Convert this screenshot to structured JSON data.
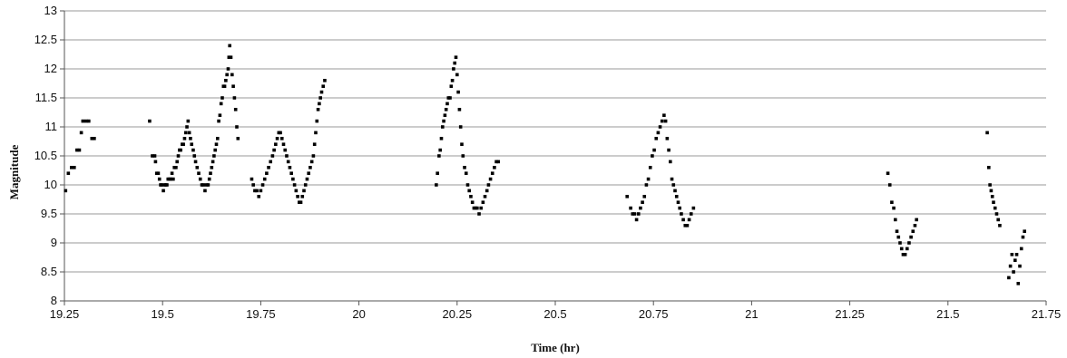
{
  "chart_data": {
    "type": "scatter",
    "title": "",
    "xlabel": "Time (hr)",
    "ylabel": "Magnitude",
    "xlim": [
      19.25,
      21.75
    ],
    "ylim": [
      8,
      13
    ],
    "grid": "horizontal",
    "legend": "none",
    "marker_color": "#000000",
    "x_ticks": [
      "19.25",
      "19.5",
      "19.75",
      "20",
      "20.25",
      "20.5",
      "20.75",
      "21",
      "21.25",
      "21.5",
      "21.75"
    ],
    "y_ticks": [
      "8",
      "8.5",
      "9",
      "9.5",
      "10",
      "10.5",
      "11",
      "11.5",
      "12",
      "12.5",
      "13"
    ],
    "series": [
      {
        "points": [
          [
            19.253,
            9.9
          ],
          [
            19.26,
            10.2
          ],
          [
            19.268,
            10.3
          ],
          [
            19.275,
            10.3
          ],
          [
            19.282,
            10.6
          ],
          [
            19.288,
            10.6
          ],
          [
            19.293,
            10.9
          ],
          [
            19.297,
            11.1
          ],
          [
            19.305,
            11.1
          ],
          [
            19.312,
            11.1
          ],
          [
            19.32,
            10.8
          ],
          [
            19.326,
            10.8
          ],
          [
            19.467,
            11.1
          ],
          [
            19.474,
            10.5
          ],
          [
            19.48,
            10.5
          ],
          [
            19.482,
            10.4
          ],
          [
            19.485,
            10.2
          ],
          [
            19.489,
            10.2
          ],
          [
            19.492,
            10.1
          ],
          [
            19.495,
            10.0
          ],
          [
            19.498,
            10.0
          ],
          [
            19.502,
            9.9
          ],
          [
            19.505,
            10.0
          ],
          [
            19.508,
            10.0
          ],
          [
            19.511,
            10.0
          ],
          [
            19.514,
            10.1
          ],
          [
            19.518,
            10.1
          ],
          [
            19.521,
            10.1
          ],
          [
            19.524,
            10.2
          ],
          [
            19.527,
            10.1
          ],
          [
            19.53,
            10.3
          ],
          [
            19.534,
            10.3
          ],
          [
            19.537,
            10.4
          ],
          [
            19.54,
            10.5
          ],
          [
            19.543,
            10.6
          ],
          [
            19.546,
            10.6
          ],
          [
            19.55,
            10.7
          ],
          [
            19.553,
            10.7
          ],
          [
            19.556,
            10.8
          ],
          [
            19.559,
            10.9
          ],
          [
            19.562,
            11.0
          ],
          [
            19.565,
            11.1
          ],
          [
            19.568,
            10.9
          ],
          [
            19.571,
            10.8
          ],
          [
            19.574,
            10.7
          ],
          [
            19.578,
            10.6
          ],
          [
            19.581,
            10.5
          ],
          [
            19.584,
            10.4
          ],
          [
            19.588,
            10.3
          ],
          [
            19.592,
            10.2
          ],
          [
            19.596,
            10.1
          ],
          [
            19.6,
            10.0
          ],
          [
            19.604,
            10.0
          ],
          [
            19.608,
            9.9
          ],
          [
            19.612,
            10.0
          ],
          [
            19.616,
            10.0
          ],
          [
            19.619,
            10.1
          ],
          [
            19.622,
            10.2
          ],
          [
            19.625,
            10.3
          ],
          [
            19.628,
            10.4
          ],
          [
            19.631,
            10.5
          ],
          [
            19.634,
            10.6
          ],
          [
            19.637,
            10.7
          ],
          [
            19.64,
            10.8
          ],
          [
            19.643,
            11.1
          ],
          [
            19.646,
            11.2
          ],
          [
            19.649,
            11.4
          ],
          [
            19.652,
            11.5
          ],
          [
            19.655,
            11.7
          ],
          [
            19.658,
            11.7
          ],
          [
            19.661,
            11.8
          ],
          [
            19.664,
            11.9
          ],
          [
            19.667,
            12.0
          ],
          [
            19.669,
            12.2
          ],
          [
            19.671,
            12.4
          ],
          [
            19.674,
            12.2
          ],
          [
            19.677,
            11.9
          ],
          [
            19.68,
            11.7
          ],
          [
            19.683,
            11.5
          ],
          [
            19.686,
            11.3
          ],
          [
            19.689,
            11.0
          ],
          [
            19.692,
            10.8
          ],
          [
            19.727,
            10.1
          ],
          [
            19.731,
            10.0
          ],
          [
            19.735,
            9.9
          ],
          [
            19.74,
            9.9
          ],
          [
            19.745,
            9.8
          ],
          [
            19.75,
            9.9
          ],
          [
            19.755,
            10.0
          ],
          [
            19.76,
            10.1
          ],
          [
            19.765,
            10.2
          ],
          [
            19.77,
            10.3
          ],
          [
            19.775,
            10.4
          ],
          [
            19.78,
            10.5
          ],
          [
            19.784,
            10.6
          ],
          [
            19.788,
            10.7
          ],
          [
            19.792,
            10.8
          ],
          [
            19.796,
            10.9
          ],
          [
            19.8,
            10.9
          ],
          [
            19.804,
            10.8
          ],
          [
            19.808,
            10.7
          ],
          [
            19.812,
            10.6
          ],
          [
            19.816,
            10.5
          ],
          [
            19.82,
            10.4
          ],
          [
            19.824,
            10.3
          ],
          [
            19.828,
            10.2
          ],
          [
            19.832,
            10.1
          ],
          [
            19.836,
            10.0
          ],
          [
            19.84,
            9.9
          ],
          [
            19.844,
            9.8
          ],
          [
            19.848,
            9.7
          ],
          [
            19.852,
            9.7
          ],
          [
            19.856,
            9.8
          ],
          [
            19.86,
            9.9
          ],
          [
            19.864,
            10.0
          ],
          [
            19.868,
            10.1
          ],
          [
            19.872,
            10.2
          ],
          [
            19.876,
            10.3
          ],
          [
            19.88,
            10.4
          ],
          [
            19.884,
            10.5
          ],
          [
            19.887,
            10.7
          ],
          [
            19.89,
            10.9
          ],
          [
            19.893,
            11.1
          ],
          [
            19.896,
            11.3
          ],
          [
            19.899,
            11.4
          ],
          [
            19.902,
            11.5
          ],
          [
            19.905,
            11.6
          ],
          [
            19.909,
            11.7
          ],
          [
            19.913,
            11.8
          ],
          [
            20.197,
            10.0
          ],
          [
            20.2,
            10.2
          ],
          [
            20.204,
            10.5
          ],
          [
            20.207,
            10.6
          ],
          [
            20.21,
            10.8
          ],
          [
            20.213,
            11.0
          ],
          [
            20.216,
            11.1
          ],
          [
            20.219,
            11.2
          ],
          [
            20.222,
            11.3
          ],
          [
            20.225,
            11.4
          ],
          [
            20.228,
            11.5
          ],
          [
            20.232,
            11.5
          ],
          [
            20.235,
            11.7
          ],
          [
            20.238,
            11.8
          ],
          [
            20.241,
            12.0
          ],
          [
            20.244,
            12.1
          ],
          [
            20.247,
            12.2
          ],
          [
            20.25,
            11.9
          ],
          [
            20.253,
            11.6
          ],
          [
            20.256,
            11.3
          ],
          [
            20.259,
            11.0
          ],
          [
            20.262,
            10.7
          ],
          [
            20.265,
            10.5
          ],
          [
            20.269,
            10.3
          ],
          [
            20.273,
            10.2
          ],
          [
            20.277,
            10.0
          ],
          [
            20.281,
            9.9
          ],
          [
            20.285,
            9.8
          ],
          [
            20.289,
            9.7
          ],
          [
            20.293,
            9.6
          ],
          [
            20.297,
            9.6
          ],
          [
            20.301,
            9.6
          ],
          [
            20.306,
            9.5
          ],
          [
            20.311,
            9.6
          ],
          [
            20.316,
            9.7
          ],
          [
            20.321,
            9.8
          ],
          [
            20.326,
            9.9
          ],
          [
            20.33,
            10.0
          ],
          [
            20.335,
            10.1
          ],
          [
            20.34,
            10.2
          ],
          [
            20.345,
            10.3
          ],
          [
            20.35,
            10.4
          ],
          [
            20.355,
            10.4
          ],
          [
            20.683,
            9.8
          ],
          [
            20.692,
            9.6
          ],
          [
            20.697,
            9.5
          ],
          [
            20.702,
            9.5
          ],
          [
            20.707,
            9.4
          ],
          [
            20.712,
            9.5
          ],
          [
            20.717,
            9.6
          ],
          [
            20.722,
            9.7
          ],
          [
            20.727,
            9.8
          ],
          [
            20.732,
            10.0
          ],
          [
            20.737,
            10.1
          ],
          [
            20.742,
            10.3
          ],
          [
            20.747,
            10.5
          ],
          [
            20.752,
            10.6
          ],
          [
            20.757,
            10.8
          ],
          [
            20.762,
            10.9
          ],
          [
            20.767,
            11.0
          ],
          [
            20.772,
            11.1
          ],
          [
            20.777,
            11.2
          ],
          [
            20.781,
            11.1
          ],
          [
            20.785,
            10.8
          ],
          [
            20.789,
            10.6
          ],
          [
            20.793,
            10.4
          ],
          [
            20.797,
            10.1
          ],
          [
            20.801,
            10.0
          ],
          [
            20.805,
            9.9
          ],
          [
            20.809,
            9.8
          ],
          [
            20.813,
            9.7
          ],
          [
            20.817,
            9.6
          ],
          [
            20.821,
            9.5
          ],
          [
            20.826,
            9.4
          ],
          [
            20.831,
            9.3
          ],
          [
            20.836,
            9.3
          ],
          [
            20.841,
            9.4
          ],
          [
            20.846,
            9.5
          ],
          [
            20.852,
            9.6
          ],
          [
            21.347,
            10.2
          ],
          [
            21.352,
            10.0
          ],
          [
            21.357,
            9.7
          ],
          [
            21.362,
            9.6
          ],
          [
            21.366,
            9.4
          ],
          [
            21.37,
            9.2
          ],
          [
            21.374,
            9.1
          ],
          [
            21.378,
            9.0
          ],
          [
            21.382,
            8.9
          ],
          [
            21.386,
            8.8
          ],
          [
            21.391,
            8.8
          ],
          [
            21.396,
            8.9
          ],
          [
            21.401,
            9.0
          ],
          [
            21.406,
            9.1
          ],
          [
            21.411,
            9.2
          ],
          [
            21.416,
            9.3
          ],
          [
            21.42,
            9.4
          ],
          [
            21.6,
            10.9
          ],
          [
            21.604,
            10.3
          ],
          [
            21.607,
            10.0
          ],
          [
            21.61,
            9.9
          ],
          [
            21.613,
            9.8
          ],
          [
            21.616,
            9.7
          ],
          [
            21.62,
            9.6
          ],
          [
            21.624,
            9.5
          ],
          [
            21.628,
            9.4
          ],
          [
            21.632,
            9.3
          ],
          [
            21.655,
            8.4
          ],
          [
            21.659,
            8.6
          ],
          [
            21.663,
            8.8
          ],
          [
            21.667,
            8.5
          ],
          [
            21.671,
            8.7
          ],
          [
            21.675,
            8.8
          ],
          [
            21.679,
            8.3
          ],
          [
            21.683,
            8.6
          ],
          [
            21.687,
            8.9
          ],
          [
            21.691,
            9.1
          ],
          [
            21.695,
            9.2
          ]
        ]
      }
    ]
  }
}
